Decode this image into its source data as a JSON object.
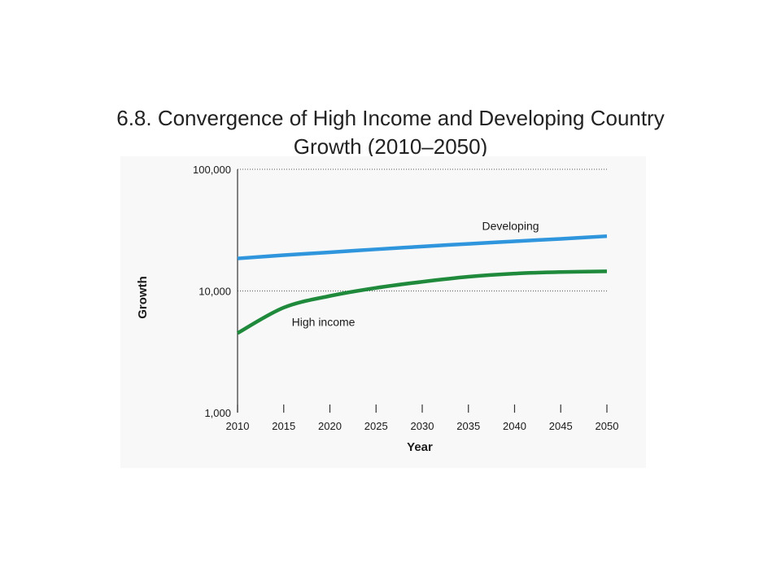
{
  "slide": {
    "title_line1": "6.8. Convergence of High Income and Developing Country",
    "title_line2": "Growth (2010–2050)"
  },
  "chart_data": {
    "type": "line",
    "title": "6.8. Convergence of High Income and Developing Country Growth (2010–2050)",
    "xlabel": "Year",
    "ylabel": "Growth",
    "yscale": "log",
    "xlim": [
      2010,
      2050
    ],
    "ylim": [
      1000,
      100000
    ],
    "x_ticks": [
      2010,
      2015,
      2020,
      2025,
      2030,
      2035,
      2040,
      2045,
      2050
    ],
    "x_tick_labels": [
      "2010",
      "2015",
      "2020",
      "2025",
      "2030",
      "2035",
      "2040",
      "2045",
      "2050"
    ],
    "y_ticks": [
      1000,
      10000,
      100000
    ],
    "y_tick_labels": [
      "1,000",
      "10,000",
      "100,000"
    ],
    "grid": "dotted horizontal at 10,000 and 100,000",
    "x": [
      2010,
      2015,
      2020,
      2025,
      2030,
      2035,
      2040,
      2045,
      2050
    ],
    "series": [
      {
        "name": "Developing",
        "color": "#2f95dc",
        "values": [
          18500,
          19700,
          20800,
          22000,
          23200,
          24400,
          25600,
          26800,
          28200
        ]
      },
      {
        "name": "High income",
        "color": "#1f8a3c",
        "values": [
          4500,
          7300,
          9100,
          10600,
          11900,
          13100,
          13900,
          14300,
          14500
        ]
      }
    ]
  }
}
